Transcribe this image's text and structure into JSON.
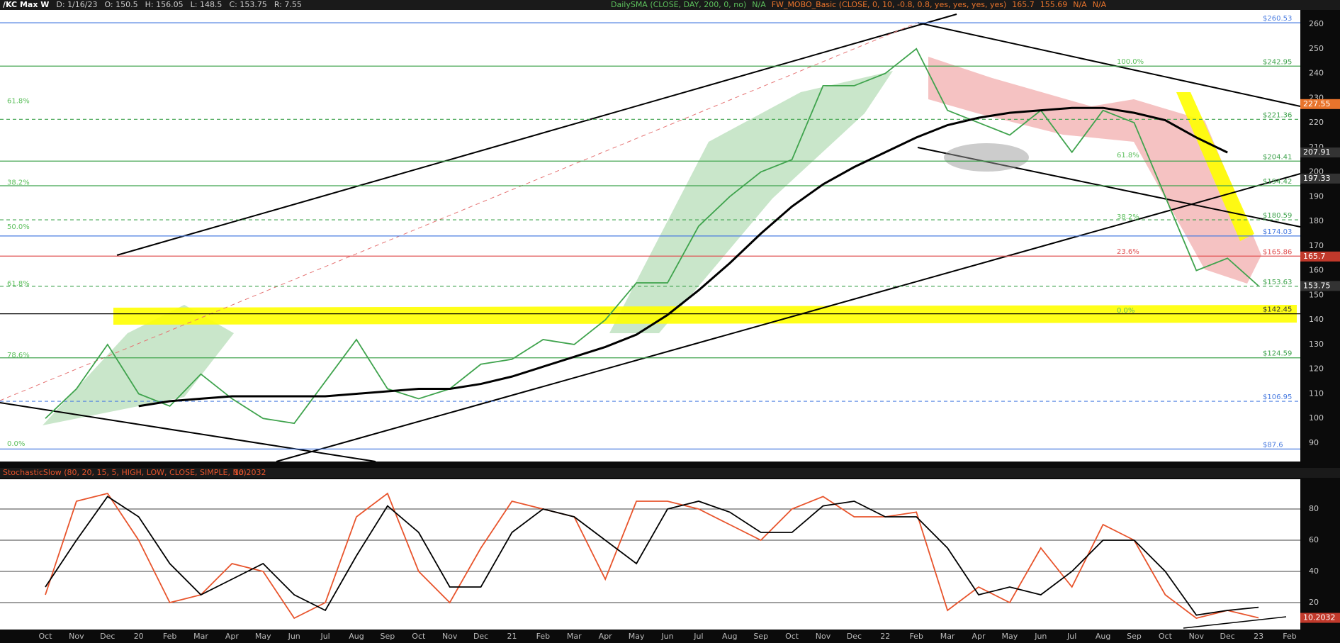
{
  "header": {
    "symbol": "/KC Max W",
    "date": "D: 1/16/23",
    "open": "O: 150.5",
    "high": "H: 156.05",
    "low": "L: 148.5",
    "close": "C: 153.75",
    "range": "R: 7.55",
    "sma_study": "DailySMA (CLOSE, DAY, 200, 0, no)",
    "sma_value": "N/A",
    "mobo_study": "FW_MOBO_Basic (CLOSE, 0, 10, -0.8, 0.8, yes, yes, yes, yes)",
    "mobo_values": [
      "165.7",
      "155.69",
      "N/A",
      "N/A"
    ]
  },
  "chart_data": [
    {
      "type": "line",
      "name_panel": "price",
      "categories": [
        "Oct",
        "Nov",
        "Dec",
        "20",
        "Feb",
        "Mar",
        "Apr",
        "May",
        "Jun",
        "Jul",
        "Aug",
        "Sep",
        "Oct",
        "Nov",
        "Dec",
        "21",
        "Feb",
        "Mar",
        "Apr",
        "May",
        "Jun",
        "Jul",
        "Aug",
        "Sep",
        "Oct",
        "Nov",
        "Dec",
        "22",
        "Feb",
        "Mar",
        "Apr",
        "May",
        "Jun",
        "Jul",
        "Aug",
        "Sep",
        "Oct",
        "Nov",
        "Dec",
        "23",
        "Feb"
      ],
      "series": [
        {
          "name": "Close",
          "color": "#3fa34d",
          "values": [
            100,
            112,
            130,
            110,
            105,
            118,
            108,
            100,
            98,
            115,
            132,
            112,
            108,
            112,
            122,
            124,
            132,
            130,
            140,
            155,
            155,
            178,
            190,
            200,
            205,
            235,
            235,
            240,
            250,
            225,
            220,
            215,
            225,
            208,
            225,
            220,
            190,
            160,
            165,
            153.75,
            null
          ]
        },
        {
          "name": "SMA",
          "color": "#000000",
          "values": [
            null,
            null,
            null,
            105,
            107,
            108,
            109,
            109,
            109,
            109,
            110,
            111,
            112,
            112,
            114,
            117,
            121,
            125,
            129,
            134,
            142,
            152,
            163,
            175,
            186,
            195,
            202,
            208,
            214,
            219,
            222,
            224,
            225,
            226,
            226,
            224,
            221,
            214,
            207.91,
            null,
            null
          ]
        }
      ],
      "ylim": [
        85,
        262
      ],
      "yticks": [
        90,
        100,
        110,
        120,
        130,
        140,
        150,
        160,
        170,
        180,
        190,
        200,
        210,
        220,
        230,
        240,
        250,
        260
      ],
      "levels": [
        {
          "value": 260.53,
          "label": "$260.53",
          "color": "#4a7ce0"
        },
        {
          "value": 242.95,
          "label": "$242.95",
          "color": "#3fa34d"
        },
        {
          "value": 221.36,
          "label": "$221.36",
          "color": "#3fa34d"
        },
        {
          "value": 204.41,
          "label": "$204.41",
          "color": "#3fa34d"
        },
        {
          "value": 194.42,
          "label": "$194.42",
          "color": "#3fa34d"
        },
        {
          "value": 180.59,
          "label": "$180.59",
          "color": "#3fa34d"
        },
        {
          "value": 174.03,
          "label": "$174.03",
          "color": "#4a7ce0"
        },
        {
          "value": 165.86,
          "label": "$165.86",
          "color": "#e05050"
        },
        {
          "value": 153.63,
          "label": "$153.63",
          "color": "#3fa34d"
        },
        {
          "value": 142.45,
          "label": "$142.45",
          "color": "#ddd"
        },
        {
          "value": 124.59,
          "label": "$124.59",
          "color": "#3fa34d"
        },
        {
          "value": 106.95,
          "label": "$106.95",
          "color": "#4a7ce0"
        },
        {
          "value": 87.6,
          "label": "$87.6",
          "color": "#4a7ce0"
        }
      ],
      "fib_left": [
        {
          "value": 227,
          "label": "61.8%"
        },
        {
          "value": 194,
          "label": "38.2%"
        },
        {
          "value": 176,
          "label": "50.0%"
        },
        {
          "value": 153,
          "label": "61.8%"
        },
        {
          "value": 124,
          "label": "78.6%"
        },
        {
          "value": 88,
          "label": "0.0%"
        }
      ],
      "fib_right": [
        {
          "value": 243,
          "label": "100.0%"
        },
        {
          "value": 205,
          "label": "61.8%"
        },
        {
          "value": 180,
          "label": "38.2%"
        },
        {
          "value": 166,
          "label": "23.6%"
        },
        {
          "value": 142,
          "label": "0.0%"
        }
      ],
      "price_tags": [
        {
          "value": 227.55,
          "color": "#e8742c"
        },
        {
          "value": 207.91,
          "color": "#333"
        },
        {
          "value": 197.33,
          "color": "#333"
        },
        {
          "value": 165.7,
          "color": "#c0392b"
        },
        {
          "value": 153.75,
          "color": "#333"
        }
      ]
    },
    {
      "type": "line",
      "name_panel": "stochastic",
      "title": "StochasticSlow (80, 20, 15, 5, HIGH, LOW, CLOSE, SIMPLE, No)",
      "current": "10.2032",
      "series": [
        {
          "name": "%K",
          "color": "#e8542c",
          "values": [
            25,
            85,
            90,
            60,
            20,
            25,
            45,
            40,
            10,
            20,
            75,
            90,
            40,
            20,
            55,
            85,
            80,
            75,
            35,
            85,
            85,
            80,
            70,
            60,
            80,
            88,
            75,
            75,
            78,
            15,
            30,
            20,
            55,
            30,
            70,
            60,
            25,
            10,
            15,
            10.2032,
            null
          ]
        },
        {
          "name": "%D",
          "color": "#000000",
          "values": [
            30,
            60,
            88,
            75,
            45,
            25,
            35,
            45,
            25,
            15,
            50,
            82,
            65,
            30,
            30,
            65,
            80,
            75,
            60,
            45,
            80,
            85,
            78,
            65,
            65,
            82,
            85,
            75,
            75,
            55,
            25,
            30,
            25,
            40,
            60,
            60,
            40,
            12,
            15,
            17,
            null
          ]
        }
      ],
      "ylim": [
        0,
        100
      ],
      "yticks": [
        20,
        40,
        60,
        80
      ],
      "tag": {
        "value": 10.2032,
        "color": "#c0392b"
      }
    }
  ]
}
